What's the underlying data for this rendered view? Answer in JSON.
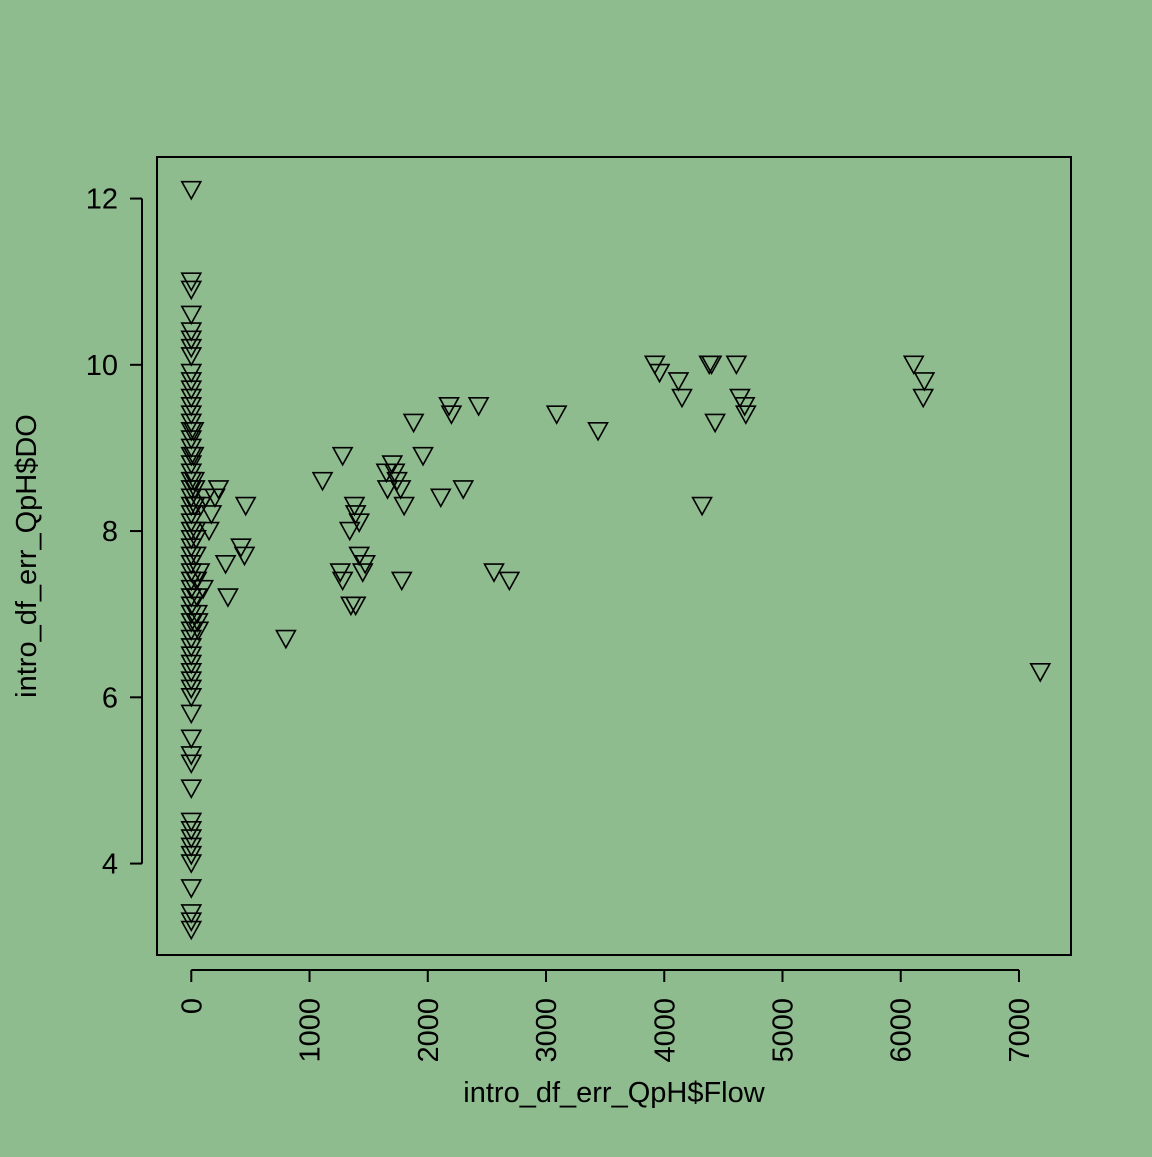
{
  "chart_data": {
    "type": "scatter",
    "title": "",
    "xlabel": "intro_df_err_QpH$Flow",
    "ylabel": "intro_df_err_QpH$DO",
    "xlim": [
      -290,
      7440
    ],
    "ylim": [
      2.9,
      12.5
    ],
    "x_ticks": [
      0,
      1000,
      2000,
      3000,
      4000,
      5000,
      6000,
      7000
    ],
    "x_tick_labels": [
      "0",
      "1000",
      "2000",
      "3000",
      "4000",
      "5000",
      "6000",
      "7000"
    ],
    "y_ticks": [
      4,
      6,
      8,
      10,
      12
    ],
    "y_tick_labels": [
      "4",
      "6",
      "8",
      "10",
      "12"
    ],
    "grid": false,
    "legend": "none",
    "marker": "down-triangle",
    "colors": {
      "background": "#8fbc8f",
      "marker_stroke": "#000000",
      "axis": "#000000"
    },
    "points": [
      [
        0,
        12.1
      ],
      [
        0,
        11.0
      ],
      [
        0,
        10.9
      ],
      [
        0,
        10.6
      ],
      [
        0,
        10.4
      ],
      [
        0,
        10.3
      ],
      [
        0,
        10.2
      ],
      [
        0,
        10.1
      ],
      [
        0,
        9.9
      ],
      [
        0,
        9.8
      ],
      [
        0,
        9.7
      ],
      [
        0,
        9.6
      ],
      [
        0,
        9.5
      ],
      [
        0,
        9.4
      ],
      [
        0,
        9.3
      ],
      [
        0,
        9.2
      ],
      [
        0,
        9.1
      ],
      [
        0,
        9.0
      ],
      [
        0,
        8.9
      ],
      [
        0,
        8.8
      ],
      [
        0,
        8.7
      ],
      [
        0,
        8.6
      ],
      [
        0,
        8.5
      ],
      [
        0,
        8.4
      ],
      [
        0,
        8.3
      ],
      [
        0,
        8.2
      ],
      [
        0,
        8.1
      ],
      [
        0,
        8.0
      ],
      [
        0,
        7.9
      ],
      [
        0,
        7.8
      ],
      [
        0,
        7.7
      ],
      [
        0,
        7.6
      ],
      [
        0,
        7.5
      ],
      [
        0,
        7.4
      ],
      [
        0,
        7.3
      ],
      [
        0,
        7.2
      ],
      [
        0,
        7.1
      ],
      [
        0,
        7.0
      ],
      [
        0,
        6.9
      ],
      [
        0,
        6.8
      ],
      [
        0,
        6.7
      ],
      [
        0,
        6.6
      ],
      [
        0,
        6.5
      ],
      [
        0,
        6.4
      ],
      [
        0,
        6.3
      ],
      [
        0,
        6.2
      ],
      [
        0,
        6.1
      ],
      [
        0,
        6.0
      ],
      [
        0,
        5.8
      ],
      [
        0,
        5.5
      ],
      [
        0,
        5.3
      ],
      [
        0,
        5.2
      ],
      [
        0,
        4.9
      ],
      [
        0,
        4.5
      ],
      [
        0,
        4.4
      ],
      [
        0,
        4.3
      ],
      [
        0,
        4.2
      ],
      [
        0,
        4.1
      ],
      [
        0,
        4.0
      ],
      [
        0,
        3.7
      ],
      [
        0,
        3.4
      ],
      [
        0,
        3.3
      ],
      [
        0,
        3.2
      ],
      [
        20,
        8.9
      ],
      [
        25,
        8.6
      ],
      [
        30,
        8.3
      ],
      [
        35,
        8.0
      ],
      [
        40,
        7.7
      ],
      [
        45,
        7.4
      ],
      [
        50,
        7.2
      ],
      [
        55,
        6.9
      ],
      [
        20,
        9.2
      ],
      [
        30,
        8.5
      ],
      [
        40,
        7.9
      ],
      [
        50,
        7.0
      ],
      [
        60,
        6.8
      ],
      [
        70,
        7.5
      ],
      [
        80,
        8.3
      ],
      [
        100,
        7.3
      ],
      [
        120,
        8.4
      ],
      [
        150,
        8.0
      ],
      [
        170,
        8.2
      ],
      [
        200,
        8.4
      ],
      [
        230,
        8.5
      ],
      [
        290,
        7.6
      ],
      [
        310,
        7.2
      ],
      [
        420,
        7.8
      ],
      [
        450,
        7.7
      ],
      [
        460,
        8.3
      ],
      [
        800,
        6.7
      ],
      [
        1110,
        8.6
      ],
      [
        1280,
        8.9
      ],
      [
        1260,
        7.5
      ],
      [
        1280,
        7.4
      ],
      [
        1340,
        8.0
      ],
      [
        1350,
        7.1
      ],
      [
        1380,
        8.3
      ],
      [
        1390,
        8.2
      ],
      [
        1390,
        7.1
      ],
      [
        1420,
        8.1
      ],
      [
        1420,
        7.7
      ],
      [
        1450,
        7.5
      ],
      [
        1470,
        7.6
      ],
      [
        1650,
        8.7
      ],
      [
        1660,
        8.5
      ],
      [
        1700,
        8.8
      ],
      [
        1720,
        8.7
      ],
      [
        1740,
        8.6
      ],
      [
        1770,
        8.5
      ],
      [
        1780,
        7.4
      ],
      [
        1800,
        8.3
      ],
      [
        1880,
        9.3
      ],
      [
        1960,
        8.9
      ],
      [
        2110,
        8.4
      ],
      [
        2180,
        9.5
      ],
      [
        2200,
        9.4
      ],
      [
        2300,
        8.5
      ],
      [
        2430,
        9.5
      ],
      [
        2560,
        7.5
      ],
      [
        2690,
        7.4
      ],
      [
        3090,
        9.4
      ],
      [
        3440,
        9.2
      ],
      [
        3920,
        10.0
      ],
      [
        3960,
        9.9
      ],
      [
        4120,
        9.8
      ],
      [
        4150,
        9.6
      ],
      [
        4320,
        8.3
      ],
      [
        4380,
        10.0
      ],
      [
        4400,
        10.0
      ],
      [
        4430,
        9.3
      ],
      [
        4610,
        10.0
      ],
      [
        4640,
        9.6
      ],
      [
        4680,
        9.5
      ],
      [
        4690,
        9.4
      ],
      [
        6110,
        10.0
      ],
      [
        6200,
        9.8
      ],
      [
        6190,
        9.6
      ],
      [
        7180,
        6.3
      ]
    ]
  }
}
